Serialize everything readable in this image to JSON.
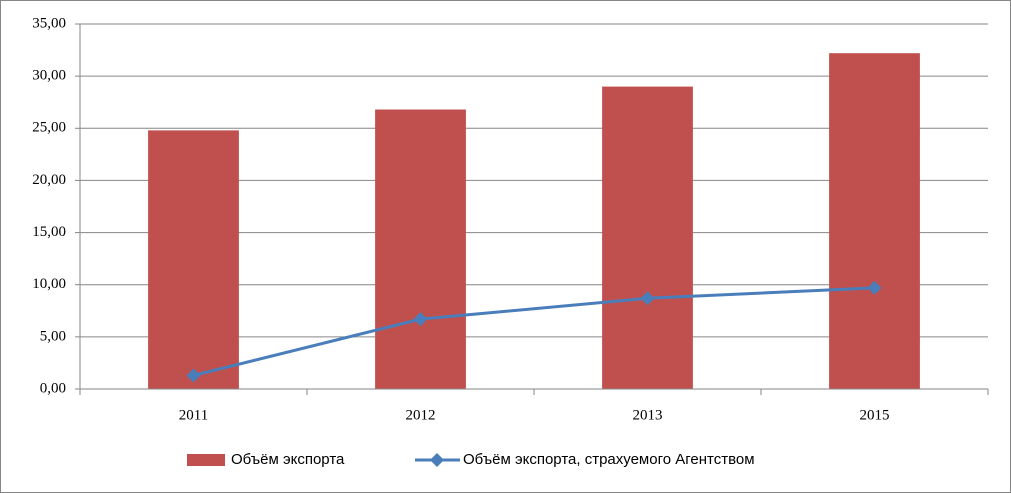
{
  "chart_data": {
    "type": "bar",
    "categories": [
      "2011",
      "2012",
      "2013",
      "2015"
    ],
    "series": [
      {
        "name": "Объём экспорта",
        "color": "#c0504d",
        "values": [
          24.8,
          26.8,
          29.0,
          32.2
        ]
      },
      {
        "name": "Объём экспорта, страхуемого Агентством",
        "color": "#4a7ebb",
        "type": "line",
        "values": [
          1.3,
          6.7,
          8.7,
          9.7
        ]
      }
    ],
    "ylim": [
      0,
      35
    ],
    "yticks": [
      {
        "value": 0,
        "label": "0,00"
      },
      {
        "value": 5,
        "label": "5,00"
      },
      {
        "value": 10,
        "label": "10,00"
      },
      {
        "value": 15,
        "label": "15,00"
      },
      {
        "value": 20,
        "label": "20,00"
      },
      {
        "value": 25,
        "label": "25,00"
      },
      {
        "value": 30,
        "label": "30,00"
      },
      {
        "value": 35,
        "label": "35,00"
      }
    ],
    "grid": true,
    "legend": "bottom"
  }
}
